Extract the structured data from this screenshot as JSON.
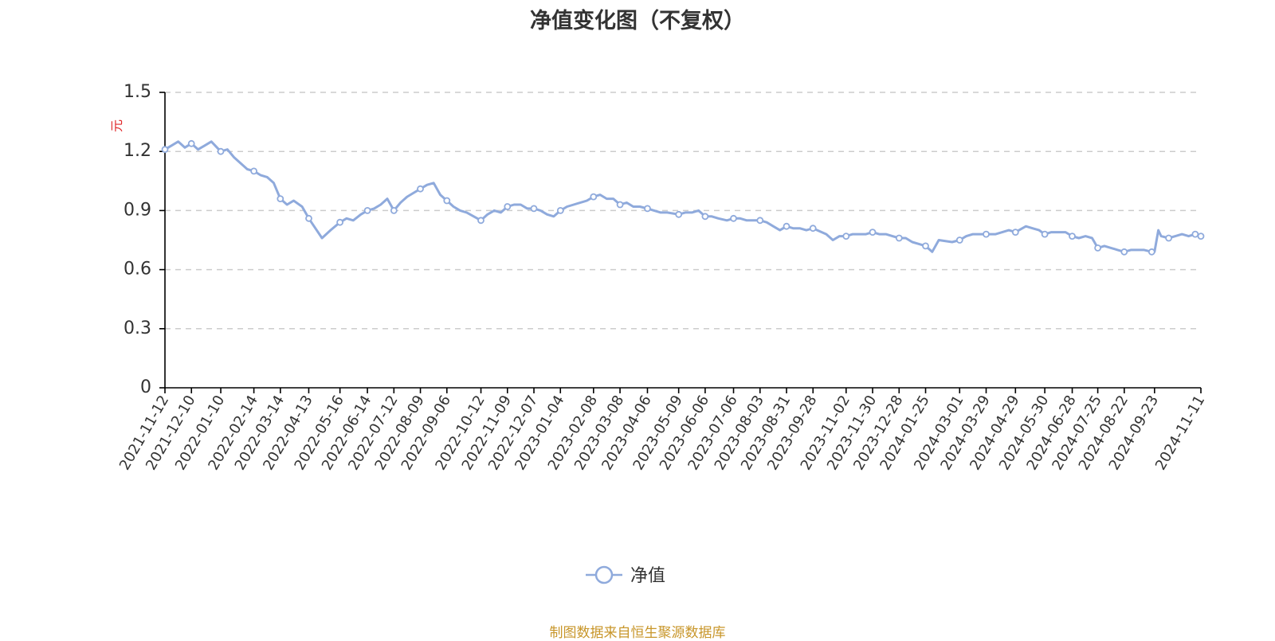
{
  "chart_data": {
    "type": "line",
    "title": "净值变化图（不复权）",
    "ylabel": "元",
    "xlabel": "",
    "ylim": [
      0,
      1.5
    ],
    "yticks": [
      "0",
      "0.3",
      "0.6",
      "0.9",
      "1.2",
      "1.5"
    ],
    "grid": true,
    "legend_position": "bottom-center",
    "colors": {
      "line": "#8faadc",
      "marker_fill": "#ffffff",
      "unit": "#e0292b",
      "source": "#c8962a"
    },
    "x_tick_labels": [
      "2021-11-12",
      "2021-12-10",
      "2022-01-10",
      "2022-02-14",
      "2022-03-14",
      "2022-04-13",
      "2022-05-16",
      "2022-06-14",
      "2022-07-12",
      "2022-08-09",
      "2022-09-06",
      "2022-10-12",
      "2022-11-09",
      "2022-12-07",
      "2023-01-04",
      "2023-02-08",
      "2023-03-08",
      "2023-04-06",
      "2023-05-09",
      "2023-06-06",
      "2023-07-06",
      "2023-08-03",
      "2023-08-31",
      "2023-09-28",
      "2023-11-02",
      "2023-11-30",
      "2023-12-28",
      "2024-01-25",
      "2024-03-01",
      "2024-03-29",
      "2024-04-29",
      "2024-05-30",
      "2024-06-28",
      "2024-07-25",
      "2024-08-22",
      "2024-09-23",
      "2024-11-11"
    ],
    "series": [
      {
        "name": "净值",
        "x": [
          "2021-11-12",
          "2021-11-19",
          "2021-11-26",
          "2021-12-03",
          "2021-12-10",
          "2021-12-17",
          "2021-12-24",
          "2021-12-31",
          "2022-01-10",
          "2022-01-17",
          "2022-01-24",
          "2022-02-07",
          "2022-02-14",
          "2022-02-21",
          "2022-02-28",
          "2022-03-07",
          "2022-03-14",
          "2022-03-21",
          "2022-03-28",
          "2022-04-06",
          "2022-04-13",
          "2022-04-20",
          "2022-04-27",
          "2022-05-06",
          "2022-05-16",
          "2022-05-23",
          "2022-05-30",
          "2022-06-07",
          "2022-06-14",
          "2022-06-21",
          "2022-06-28",
          "2022-07-05",
          "2022-07-12",
          "2022-07-19",
          "2022-07-26",
          "2022-08-02",
          "2022-08-09",
          "2022-08-16",
          "2022-08-23",
          "2022-08-30",
          "2022-09-06",
          "2022-09-13",
          "2022-09-20",
          "2022-09-27",
          "2022-10-12",
          "2022-10-19",
          "2022-10-26",
          "2022-11-02",
          "2022-11-09",
          "2022-11-16",
          "2022-11-23",
          "2022-11-30",
          "2022-12-07",
          "2022-12-14",
          "2022-12-21",
          "2022-12-28",
          "2023-01-04",
          "2023-01-11",
          "2023-01-18",
          "2023-02-01",
          "2023-02-08",
          "2023-02-15",
          "2023-02-22",
          "2023-03-01",
          "2023-03-08",
          "2023-03-15",
          "2023-03-22",
          "2023-03-29",
          "2023-04-06",
          "2023-04-13",
          "2023-04-20",
          "2023-04-27",
          "2023-05-09",
          "2023-05-16",
          "2023-05-23",
          "2023-05-30",
          "2023-06-06",
          "2023-06-13",
          "2023-06-20",
          "2023-06-29",
          "2023-07-06",
          "2023-07-13",
          "2023-07-20",
          "2023-07-27",
          "2023-08-03",
          "2023-08-10",
          "2023-08-17",
          "2023-08-24",
          "2023-08-31",
          "2023-09-07",
          "2023-09-14",
          "2023-09-21",
          "2023-09-28",
          "2023-10-12",
          "2023-10-19",
          "2023-10-26",
          "2023-11-02",
          "2023-11-09",
          "2023-11-16",
          "2023-11-23",
          "2023-11-30",
          "2023-12-07",
          "2023-12-14",
          "2023-12-21",
          "2023-12-28",
          "2024-01-04",
          "2024-01-11",
          "2024-01-18",
          "2024-01-25",
          "2024-02-01",
          "2024-02-08",
          "2024-02-22",
          "2024-03-01",
          "2024-03-08",
          "2024-03-15",
          "2024-03-22",
          "2024-03-29",
          "2024-04-08",
          "2024-04-15",
          "2024-04-22",
          "2024-04-29",
          "2024-05-10",
          "2024-05-17",
          "2024-05-24",
          "2024-05-30",
          "2024-06-06",
          "2024-06-14",
          "2024-06-21",
          "2024-06-28",
          "2024-07-05",
          "2024-07-12",
          "2024-07-19",
          "2024-07-25",
          "2024-08-01",
          "2024-08-08",
          "2024-08-15",
          "2024-08-22",
          "2024-08-29",
          "2024-09-05",
          "2024-09-12",
          "2024-09-20",
          "2024-09-23",
          "2024-09-27",
          "2024-09-30",
          "2024-10-08",
          "2024-10-15",
          "2024-10-22",
          "2024-10-29",
          "2024-11-05",
          "2024-11-11"
        ],
        "values": [
          1.21,
          1.23,
          1.25,
          1.22,
          1.24,
          1.21,
          1.23,
          1.25,
          1.2,
          1.21,
          1.17,
          1.11,
          1.1,
          1.08,
          1.07,
          1.04,
          0.96,
          0.93,
          0.95,
          0.92,
          0.86,
          0.81,
          0.76,
          0.8,
          0.84,
          0.86,
          0.85,
          0.88,
          0.9,
          0.91,
          0.93,
          0.96,
          0.9,
          0.94,
          0.97,
          0.99,
          1.01,
          1.03,
          1.04,
          0.98,
          0.95,
          0.92,
          0.9,
          0.89,
          0.85,
          0.88,
          0.9,
          0.89,
          0.92,
          0.93,
          0.93,
          0.91,
          0.91,
          0.9,
          0.88,
          0.87,
          0.9,
          0.92,
          0.93,
          0.95,
          0.97,
          0.98,
          0.96,
          0.96,
          0.93,
          0.94,
          0.92,
          0.92,
          0.91,
          0.9,
          0.89,
          0.89,
          0.88,
          0.89,
          0.89,
          0.9,
          0.87,
          0.87,
          0.86,
          0.85,
          0.86,
          0.86,
          0.85,
          0.85,
          0.85,
          0.84,
          0.82,
          0.8,
          0.82,
          0.81,
          0.81,
          0.8,
          0.81,
          0.78,
          0.75,
          0.77,
          0.77,
          0.78,
          0.78,
          0.78,
          0.79,
          0.78,
          0.78,
          0.77,
          0.76,
          0.76,
          0.74,
          0.73,
          0.72,
          0.69,
          0.75,
          0.74,
          0.75,
          0.77,
          0.78,
          0.78,
          0.78,
          0.78,
          0.79,
          0.8,
          0.79,
          0.82,
          0.81,
          0.8,
          0.78,
          0.79,
          0.79,
          0.79,
          0.77,
          0.76,
          0.77,
          0.76,
          0.71,
          0.72,
          0.71,
          0.7,
          0.69,
          0.7,
          0.7,
          0.7,
          0.69,
          0.69,
          0.8,
          0.77,
          0.76,
          0.77,
          0.78,
          0.77,
          0.78,
          0.77
        ]
      }
    ],
    "source_note": "制图数据来自恒生聚源数据库"
  }
}
